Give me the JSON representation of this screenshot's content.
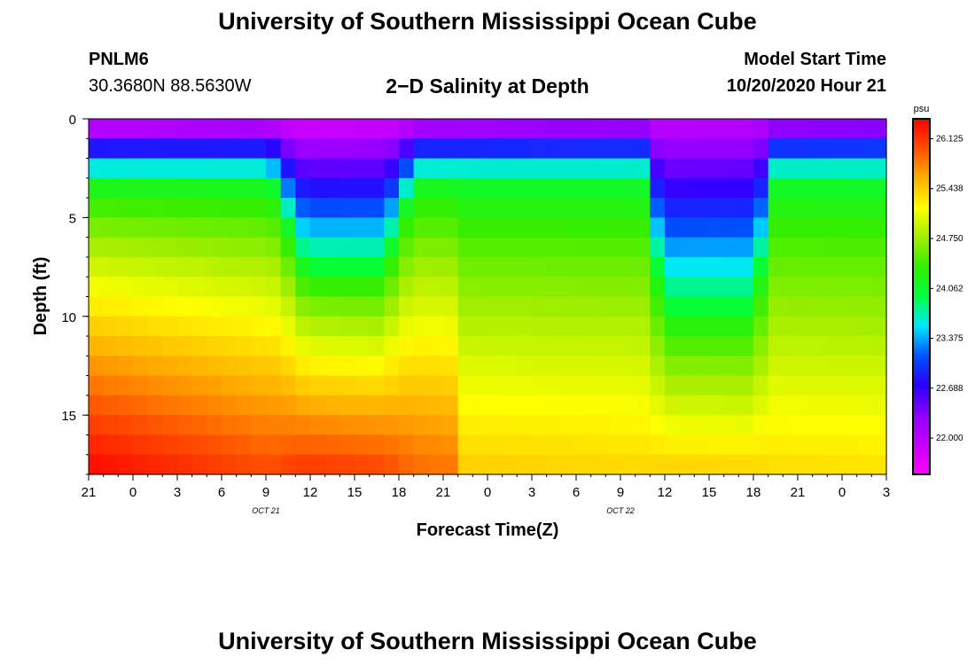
{
  "page": {
    "title_top": "University of Southern Mississippi Ocean Cube",
    "title_bottom": "University of Southern Mississippi Ocean Cube",
    "station_id": "PNLM6",
    "station_coords": "30.3680N 88.5630W",
    "plot_title": "2−D Salinity at Depth",
    "model_start_label": "Model Start Time",
    "model_start_value": "10/20/2020 Hour 21"
  },
  "chart_data": {
    "type": "heatmap",
    "title": "2−D Salinity at Depth",
    "xlabel": "Forecast Time(Z)",
    "ylabel": "Depth (ft)",
    "x_hours_range": [
      0,
      54
    ],
    "ylim": [
      0,
      18
    ],
    "x_ticks": [
      "21",
      "0",
      "3",
      "6",
      "9",
      "12",
      "15",
      "18",
      "21",
      "0",
      "3",
      "6",
      "9",
      "12",
      "15",
      "18",
      "21",
      "0",
      "3"
    ],
    "date_labels": [
      {
        "text": "OCT 21",
        "x_hours": 15
      },
      {
        "text": "OCT 22",
        "x_hours": 39
      }
    ],
    "y_ticks": [
      0,
      5,
      10,
      15
    ],
    "colorbar": {
      "units": "psu",
      "min": 21.5,
      "max": 26.4,
      "ticks": [
        26.125,
        25.438,
        24.75,
        24.062,
        23.375,
        22.688,
        22.0
      ],
      "colors": [
        "#ff00ff",
        "#c800ff",
        "#8c00ff",
        "#2a00ff",
        "#0050ff",
        "#00e6ff",
        "#00ff40",
        "#33ee00",
        "#a0ee00",
        "#ffff00",
        "#ffb000",
        "#ff5000",
        "#ff0000"
      ]
    },
    "grid_cols": 54,
    "grid_rows": 18,
    "cell_rule": "salinity increases with depth; surface ~21.6, bottom ~25.3-26.4; the fresher layer deepens during hours 13-22 (to ~7.5 ft) and 38-46 (to ~9.5 ft)"
  }
}
